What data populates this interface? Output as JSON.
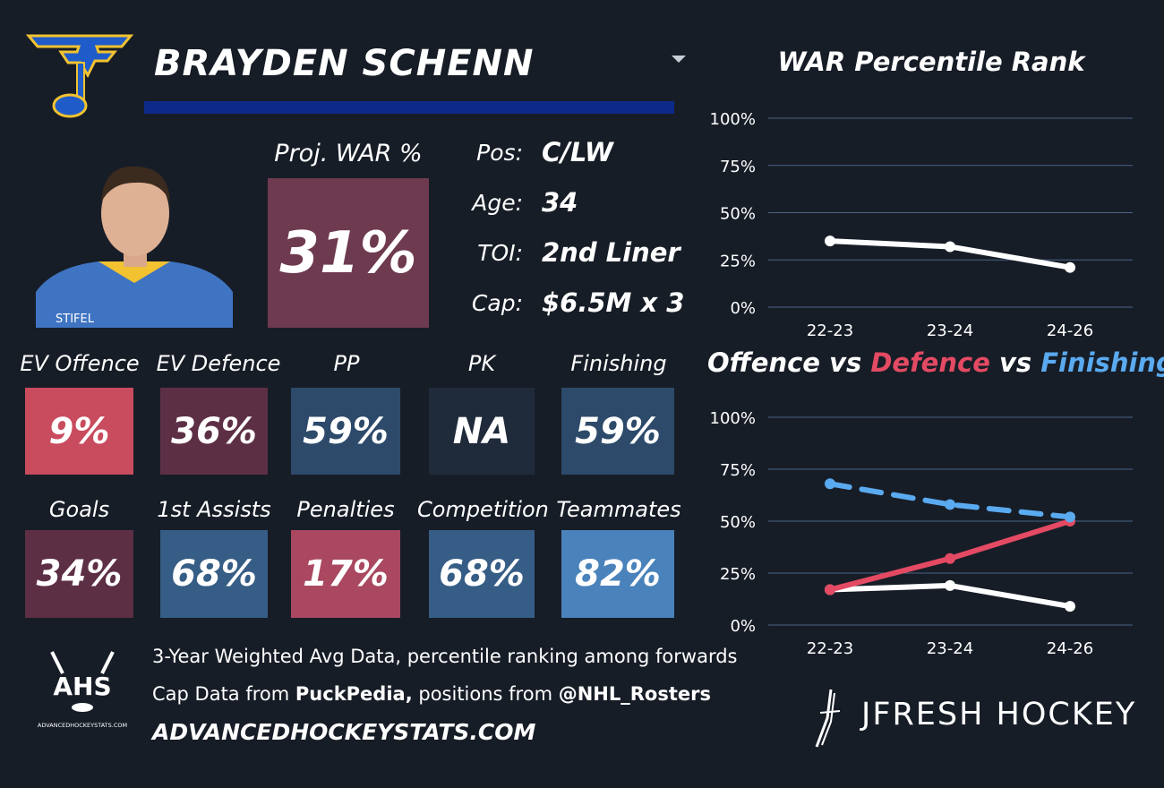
{
  "player": {
    "name": "BRAYDEN SCHENN",
    "proj_war_label": "Proj. WAR %",
    "proj_war_value": "31%",
    "proj_war_color": "#6e3a4f"
  },
  "info": [
    {
      "label": "Pos:",
      "value": "C/LW"
    },
    {
      "label": "Age:",
      "value": "34"
    },
    {
      "label": "TOI:",
      "value": "2nd Liner"
    },
    {
      "label": "Cap:",
      "value": "$6.5M x 3"
    }
  ],
  "stats_row1": [
    {
      "label": "EV Offence",
      "value": "9%",
      "color": "#c84c5e"
    },
    {
      "label": "EV Defence",
      "value": "36%",
      "color": "#5d2f45"
    },
    {
      "label": "PP",
      "value": "59%",
      "color": "#2d4a6a"
    },
    {
      "label": "PK",
      "value": "NA",
      "color": "#1f2a3a"
    },
    {
      "label": "Finishing",
      "value": "59%",
      "color": "#2d4a6a"
    }
  ],
  "stats_row2": [
    {
      "label": "Goals",
      "value": "34%",
      "color": "#5d2f45"
    },
    {
      "label": "1st Assists",
      "value": "68%",
      "color": "#365d85"
    },
    {
      "label": "Penalties",
      "value": "17%",
      "color": "#a94860"
    },
    {
      "label": "Competition",
      "value": "68%",
      "color": "#365d85"
    },
    {
      "label": "Teammates",
      "value": "82%",
      "color": "#4a82bb"
    }
  ],
  "footer": {
    "line1": "3-Year Weighted Avg Data, percentile ranking among forwards",
    "line2_prefix": "Cap Data from ",
    "line2_source1": "PuckPedia,",
    "line2_middle": " positions from ",
    "line2_source2": "@NHL_Rosters",
    "website": "ADVANCEDHOCKEYSTATS.COM",
    "ahs_logo_text": "AHS",
    "ahs_logo_small": "ADVANCEDHOCKEYSTATS.COM",
    "brand": "JFRESH HOCKEY"
  },
  "colors": {
    "background": "#171d27",
    "offence": "#ffffff",
    "defence": "#e44a63",
    "finishing": "#5aaaf0",
    "grid": "#4a6586",
    "underline": "#0d2a8a"
  },
  "chart_data": [
    {
      "type": "line",
      "title": "WAR Percentile Rank",
      "x": [
        "22-23",
        "23-24",
        "24-26"
      ],
      "ylim": [
        0,
        100
      ],
      "yticks": [
        "100%",
        "75%",
        "50%",
        "25%",
        "0%"
      ],
      "grid": true,
      "series": [
        {
          "values": [
            35,
            32,
            21
          ],
          "color": "#ffffff",
          "style": "solid"
        }
      ]
    },
    {
      "type": "line",
      "title_parts": [
        {
          "text": "Offence",
          "color": "#ffffff"
        },
        {
          "text": " vs ",
          "color": "#ffffff"
        },
        {
          "text": "Defence",
          "color": "#e44a63"
        },
        {
          "text": " vs ",
          "color": "#ffffff"
        },
        {
          "text": "Finishing",
          "color": "#5aaaf0"
        }
      ],
      "x": [
        "22-23",
        "23-24",
        "24-26"
      ],
      "ylim": [
        0,
        100
      ],
      "yticks": [
        "100%",
        "75%",
        "50%",
        "25%",
        "0%"
      ],
      "grid": true,
      "series": [
        {
          "name": "Offence",
          "values": [
            17,
            19,
            9
          ],
          "color": "#ffffff",
          "style": "solid"
        },
        {
          "name": "Defence",
          "values": [
            17,
            32,
            50
          ],
          "color": "#e44a63",
          "style": "solid"
        },
        {
          "name": "Finishing",
          "values": [
            68,
            58,
            52
          ],
          "color": "#5aaaf0",
          "style": "dashed"
        }
      ]
    }
  ]
}
